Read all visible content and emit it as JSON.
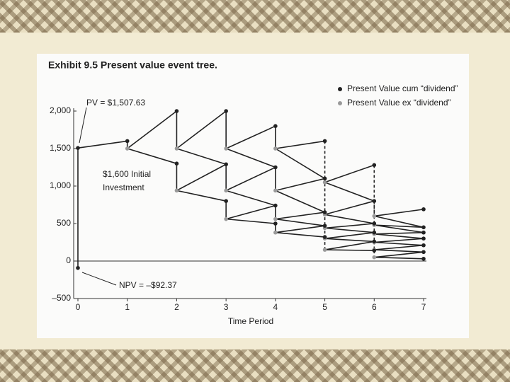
{
  "chart_data": {
    "type": "event-tree",
    "title": "Exhibit 9.5   Present value event tree.",
    "x_label": "Time Period",
    "xlim": [
      0,
      7
    ],
    "xticks": [
      0,
      1,
      2,
      3,
      4,
      5,
      6,
      7
    ],
    "ylim": [
      -500,
      2000
    ],
    "yticks": [
      {
        "value": -500,
        "label": "–500"
      },
      0,
      500,
      {
        "value": 1000,
        "label": "1,000"
      },
      {
        "value": 1500,
        "label": "1,500"
      },
      {
        "value": 2000,
        "label": "2,000"
      }
    ],
    "series": [
      {
        "name": "Present Value cum “dividend”",
        "color": "#222222"
      },
      {
        "name": "Present Value ex “dividend”",
        "color": "#9a9a9a"
      }
    ],
    "pv": 1507.63,
    "npv": -92.37,
    "annotations": {
      "pv": "PV = $1,507.63",
      "investment": [
        "$1,600 Initial",
        "Investment"
      ],
      "npv": "NPV = –$92.37"
    },
    "dashed_drops": [
      5,
      6
    ],
    "periods": [
      {
        "t": 1,
        "cum": [
          1600
        ],
        "ex": [
          1500
        ]
      },
      {
        "t": 2,
        "cum": [
          2000,
          1300
        ],
        "ex": [
          1500,
          940
        ]
      },
      {
        "t": 3,
        "cum": [
          2000,
          1290,
          800
        ],
        "ex": [
          1500,
          940,
          560
        ]
      },
      {
        "t": 4,
        "cum": [
          1800,
          1250,
          740,
          500
        ],
        "ex": [
          1500,
          940,
          560,
          380
        ]
      },
      {
        "t": 5,
        "cum": [
          1600,
          1100,
          650,
          470,
          320
        ],
        "ex": [
          1050,
          620,
          440,
          300,
          150
        ]
      },
      {
        "t": 6,
        "cum": [
          1280,
          800,
          500,
          380,
          260,
          140
        ],
        "ex": [
          600,
          480,
          360,
          250,
          150,
          50
        ]
      },
      {
        "t": 7,
        "cum": [
          690,
          450,
          380,
          300,
          210,
          120,
          30
        ]
      }
    ]
  }
}
